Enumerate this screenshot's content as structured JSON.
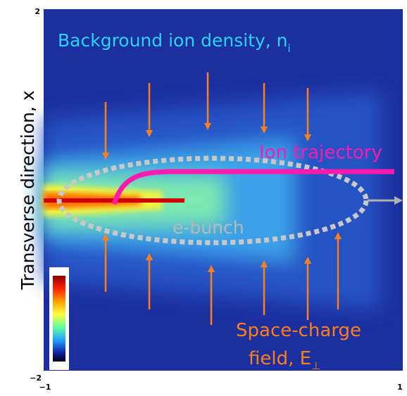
{
  "axes": {
    "y_label": "Transverse direction, x",
    "x_ticks": [
      "−1",
      "1"
    ],
    "y_ticks": [
      "2",
      "−2"
    ]
  },
  "annotations": {
    "background": {
      "text": "Background ion density, n",
      "subscript": "i"
    },
    "trajectory": "Ion trajectory",
    "bunch": "e-bunch",
    "field": {
      "line1": "Space-charge",
      "line2": "field, E",
      "subscript": "⊥"
    }
  }
}
